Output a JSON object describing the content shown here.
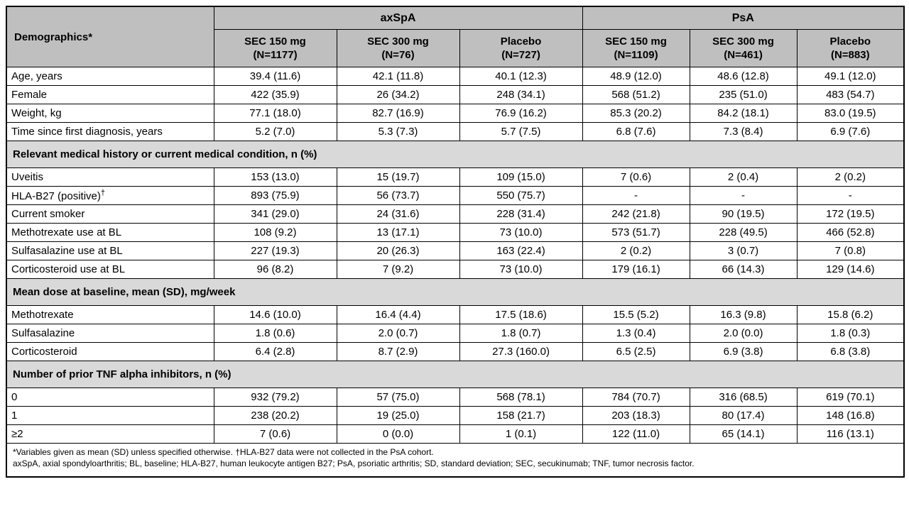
{
  "chart_data": {
    "type": "table",
    "corner_label": "Demographics*",
    "groups": [
      {
        "label": "axSpA",
        "colspan": 3
      },
      {
        "label": "PsA",
        "colspan": 3
      }
    ],
    "columns": [
      {
        "treatment": "SEC 150 mg",
        "n": "(N=1177)"
      },
      {
        "treatment": "SEC 300 mg",
        "n": "(N=76)"
      },
      {
        "treatment": "Placebo",
        "n": "(N=727)"
      },
      {
        "treatment": "SEC 150 mg",
        "n": "(N=1109)"
      },
      {
        "treatment": "SEC 300 mg",
        "n": "(N=461)"
      },
      {
        "treatment": "Placebo",
        "n": "(N=883)"
      }
    ],
    "rows": [
      {
        "type": "data",
        "label": "Age, years",
        "values": [
          "39.4 (11.6)",
          "42.1 (11.8)",
          "40.1 (12.3)",
          "48.9 (12.0)",
          "48.6 (12.8)",
          "49.1 (12.0)"
        ]
      },
      {
        "type": "data",
        "label": "Female",
        "values": [
          "422 (35.9)",
          "26 (34.2)",
          "248 (34.1)",
          "568 (51.2)",
          "235 (51.0)",
          "483 (54.7)"
        ]
      },
      {
        "type": "data",
        "label": "Weight, kg",
        "values": [
          "77.1 (18.0)",
          "82.7 (16.9)",
          "76.9 (16.2)",
          "85.3 (20.2)",
          "84.2 (18.1)",
          "83.0 (19.5)"
        ]
      },
      {
        "type": "data",
        "label": "Time since first diagnosis, years",
        "values": [
          "5.2 (7.0)",
          "5.3 (7.3)",
          "5.7 (7.5)",
          "6.8 (7.6)",
          "7.3 (8.4)",
          "6.9 (7.6)"
        ]
      },
      {
        "type": "section",
        "label": "Relevant medical history or current medical condition, n (%)"
      },
      {
        "type": "data",
        "label": "Uveitis",
        "values": [
          "153 (13.0)",
          "15 (19.7)",
          "109 (15.0)",
          "7 (0.6)",
          "2 (0.4)",
          "2 (0.2)"
        ]
      },
      {
        "type": "data",
        "label": "HLA-B27 (positive)",
        "label_sup": "†",
        "values": [
          "893 (75.9)",
          "56 (73.7)",
          "550 (75.7)",
          "-",
          "-",
          "-"
        ]
      },
      {
        "type": "data",
        "label": "Current smoker",
        "values": [
          "341 (29.0)",
          "24 (31.6)",
          "228 (31.4)",
          "242 (21.8)",
          "90 (19.5)",
          "172 (19.5)"
        ]
      },
      {
        "type": "data",
        "label": "Methotrexate use at BL",
        "values": [
          "108 (9.2)",
          "13 (17.1)",
          "73 (10.0)",
          "573 (51.7)",
          "228 (49.5)",
          "466 (52.8)"
        ]
      },
      {
        "type": "data",
        "label": "Sulfasalazine use at BL",
        "values": [
          "227 (19.3)",
          "20 (26.3)",
          "163 (22.4)",
          "2 (0.2)",
          "3 (0.7)",
          "7 (0.8)"
        ]
      },
      {
        "type": "data",
        "label": "Corticosteroid use at BL",
        "values": [
          "96 (8.2)",
          "7 (9.2)",
          "73 (10.0)",
          "179 (16.1)",
          "66 (14.3)",
          "129 (14.6)"
        ]
      },
      {
        "type": "section",
        "label": "Mean dose at baseline, mean (SD), mg/week"
      },
      {
        "type": "data",
        "label": "Methotrexate",
        "values": [
          "14.6 (10.0)",
          "16.4 (4.4)",
          "17.5 (18.6)",
          "15.5 (5.2)",
          "16.3 (9.8)",
          "15.8 (6.2)"
        ]
      },
      {
        "type": "data",
        "label": "Sulfasalazine",
        "values": [
          "1.8 (0.6)",
          "2.0 (0.7)",
          "1.8 (0.7)",
          "1.3 (0.4)",
          "2.0 (0.0)",
          "1.8 (0.3)"
        ]
      },
      {
        "type": "data",
        "label": "Corticosteroid",
        "values": [
          "6.4 (2.8)",
          "8.7 (2.9)",
          "27.3 (160.0)",
          "6.5 (2.5)",
          "6.9 (3.8)",
          "6.8 (3.8)"
        ]
      },
      {
        "type": "section",
        "label": "Number of prior TNF alpha inhibitors, n (%)"
      },
      {
        "type": "data",
        "label": "0",
        "values": [
          "932 (79.2)",
          "57 (75.0)",
          "568 (78.1)",
          "784 (70.7)",
          "316 (68.5)",
          "619 (70.1)"
        ]
      },
      {
        "type": "data",
        "label": "1",
        "values": [
          "238 (20.2)",
          "19 (25.0)",
          "158 (21.7)",
          "203 (18.3)",
          "80 (17.4)",
          "148 (16.8)"
        ]
      },
      {
        "type": "data",
        "label": "≥2",
        "values": [
          "7 (0.6)",
          "0 (0.0)",
          "1 (0.1)",
          "122 (11.0)",
          "65 (14.1)",
          "116 (13.1)"
        ]
      }
    ],
    "footnotes": [
      "*Variables given as mean (SD) unless specified otherwise. †HLA-B27 data were not collected in the PsA cohort.",
      "axSpA, axial spondyloarthritis; BL, baseline; HLA-B27, human leukocyte antigen B27; PsA, psoriatic arthritis; SD, standard deviation; SEC, secukinumab; TNF, tumor necrosis factor."
    ]
  },
  "colors": {
    "header_bg": "#bfbfbf",
    "section_bg": "#d9d9d9",
    "border": "#000000",
    "text": "#000000",
    "row_bg": "#ffffff"
  }
}
